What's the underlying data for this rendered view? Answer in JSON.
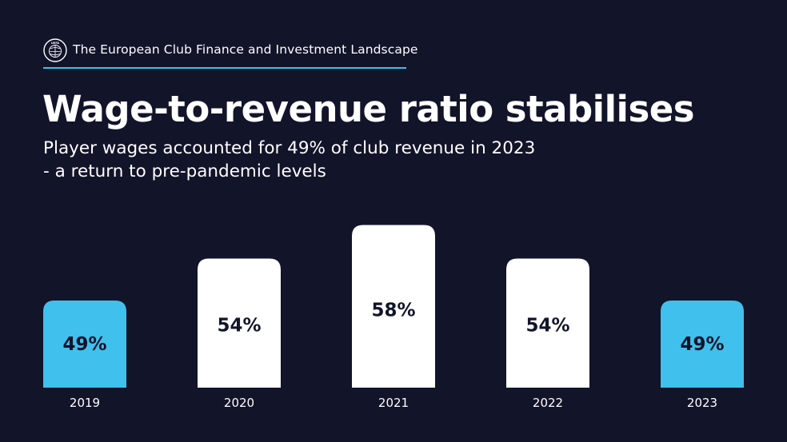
{
  "header": {
    "logo_icon": "uefa-logo-icon",
    "title": "The European Club Finance and Investment Landscape",
    "accent_color": "#3cc0ea"
  },
  "headline": "Wage-to-revenue ratio stabilises",
  "subtitle": {
    "line1": "Player wages accounted for 49% of club revenue in 2023",
    "line2": "- a return to pre-pandemic levels"
  },
  "colors": {
    "background": "#12142a",
    "highlight_bar": "#40c0ec",
    "normal_bar": "#ffffff",
    "bar_label": "#12142a",
    "axis_label": "#ffffff"
  },
  "chart_data": {
    "type": "bar",
    "title": "Wage-to-revenue ratio stabilises",
    "xlabel": "",
    "ylabel": "",
    "unit": "%",
    "categories": [
      "2019",
      "2020",
      "2021",
      "2022",
      "2023"
    ],
    "values": [
      49,
      54,
      58,
      54,
      49
    ],
    "value_labels": [
      "49%",
      "54%",
      "58%",
      "54%",
      "49%"
    ],
    "highlighted": [
      "2019",
      "2023"
    ],
    "ylim": [
      45,
      58
    ],
    "grid": false,
    "legend": "none"
  }
}
